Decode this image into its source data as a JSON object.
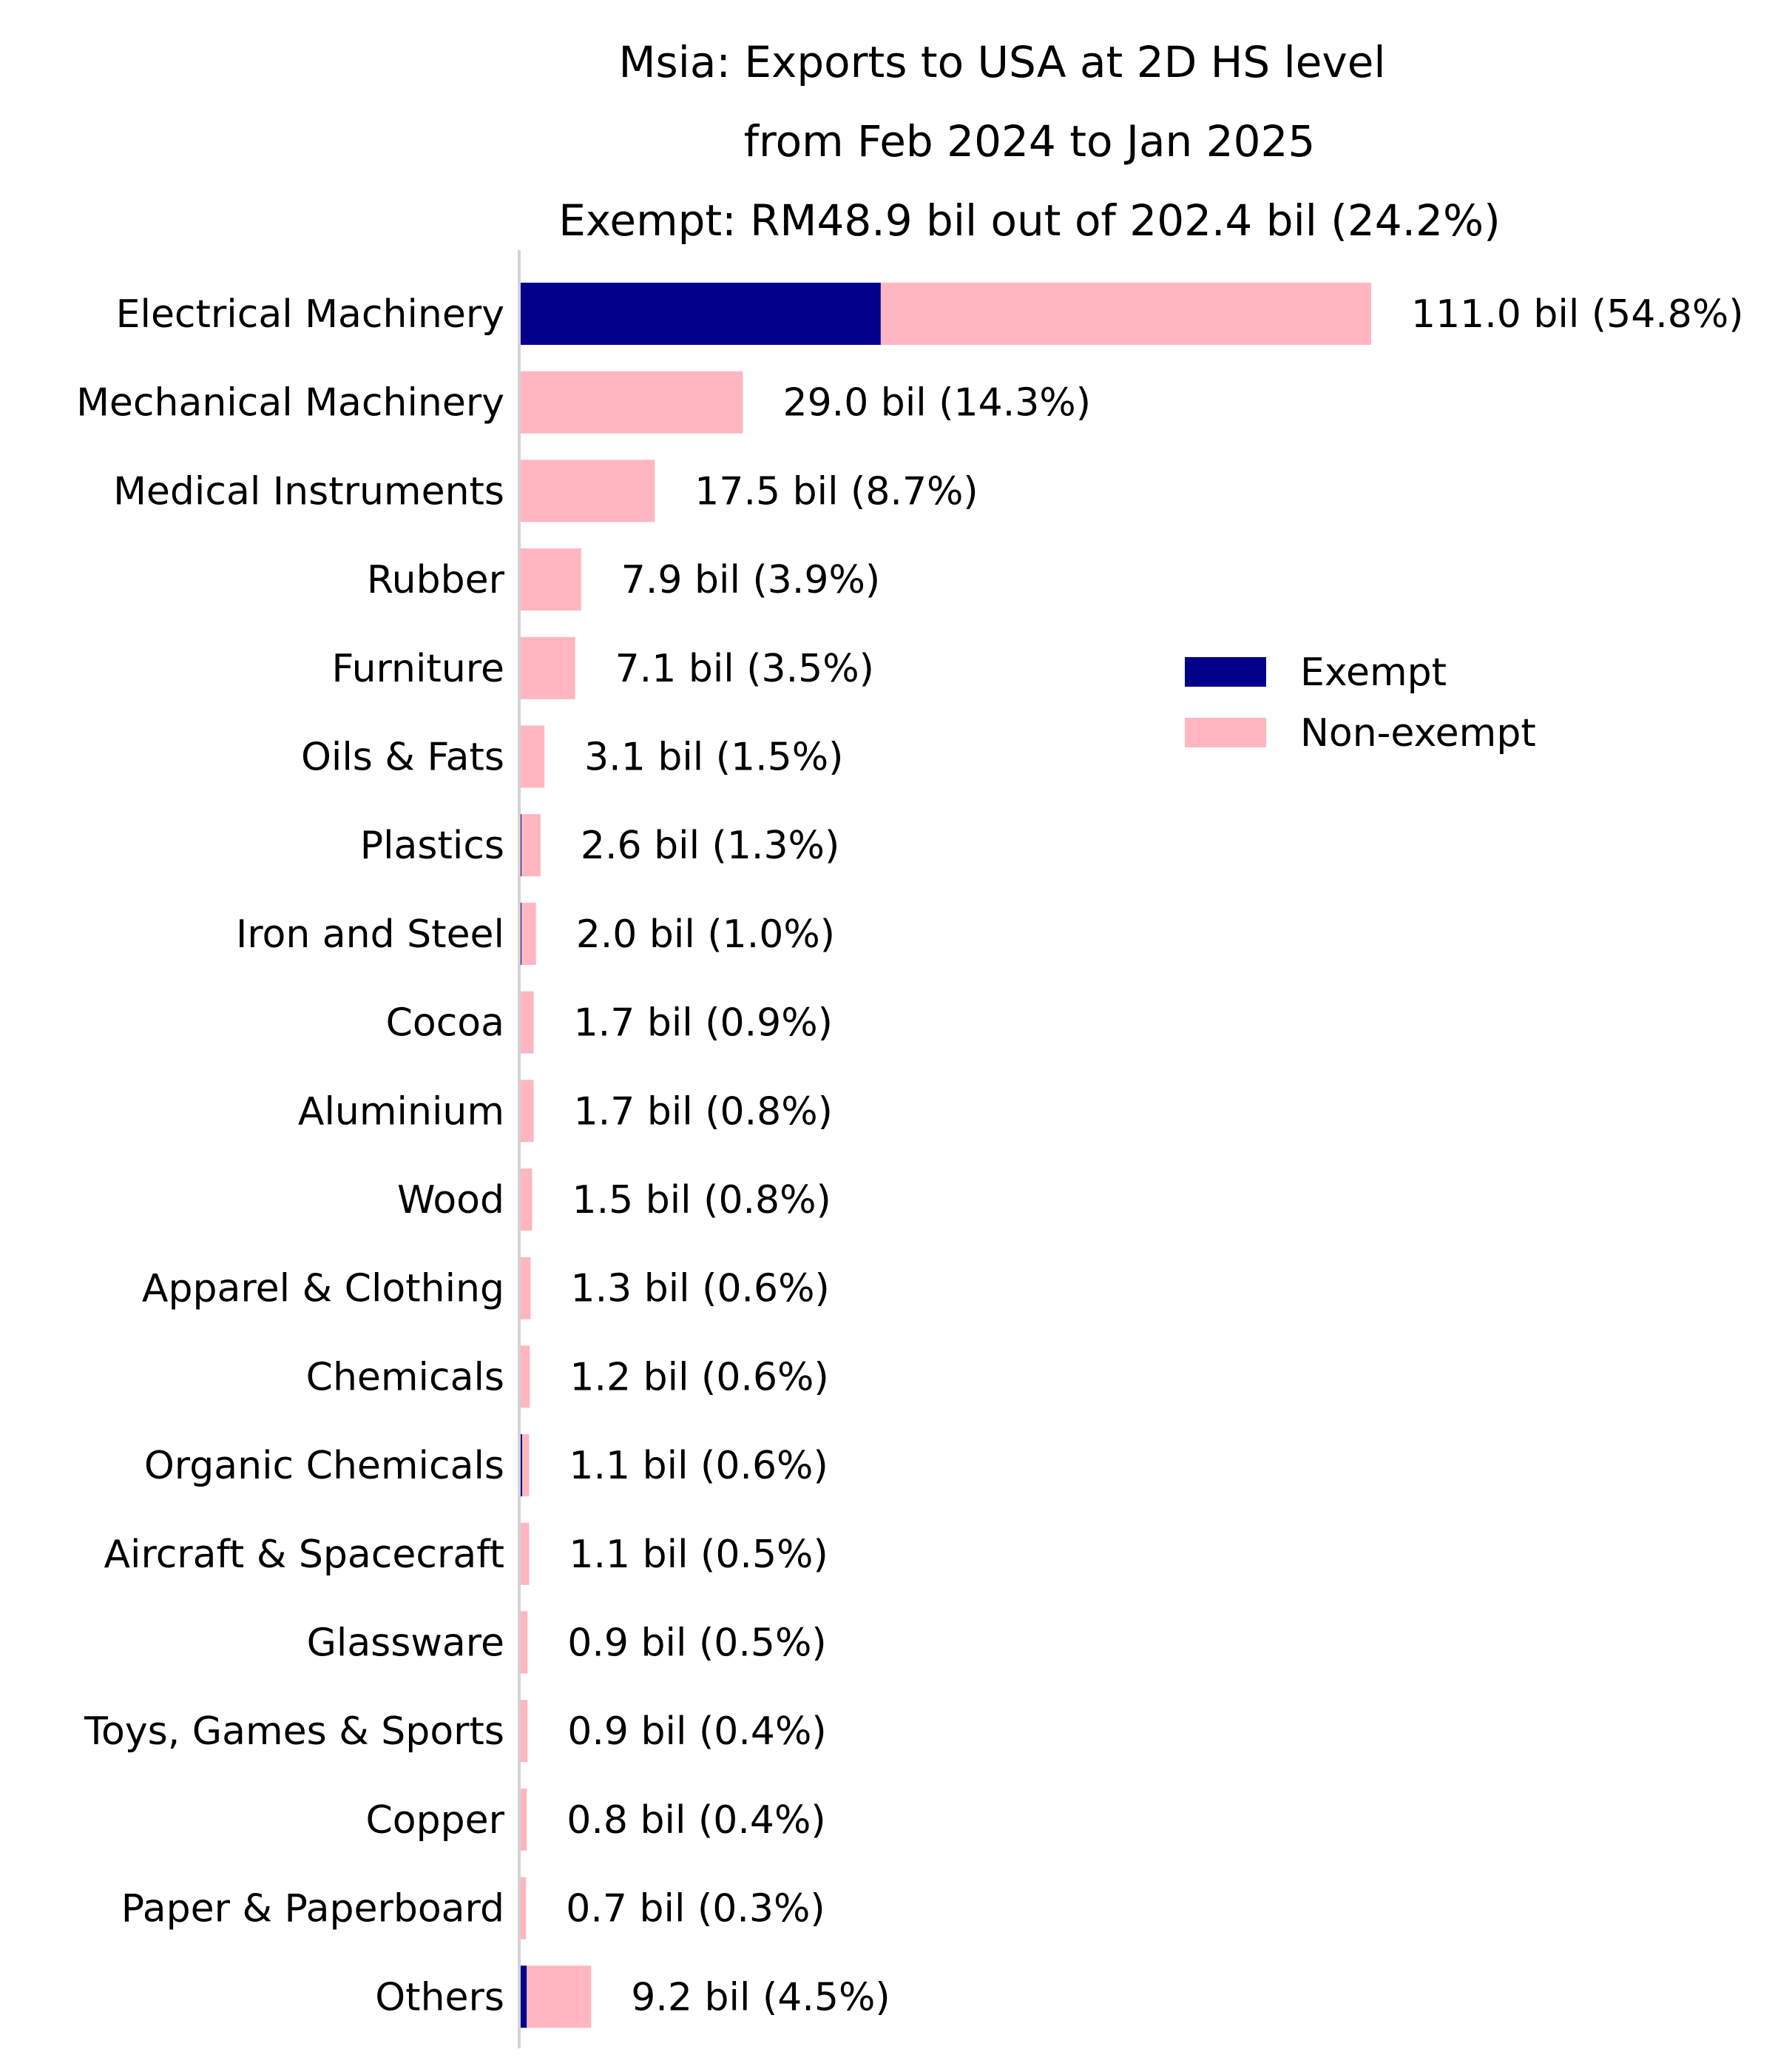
{
  "chart_data": {
    "type": "bar",
    "orientation": "horizontal",
    "stacked": true,
    "title_lines": [
      "Msia: Exports to USA at 2D HS level",
      "from Feb 2024 to Jan 2025",
      "Exempt: RM48.9 bil out of 202.4 bil (24.2%)"
    ],
    "xlabel": "",
    "ylabel": "",
    "xlim": [
      0,
      111
    ],
    "grid": false,
    "legend_position": "right",
    "categories": [
      "Electrical Machinery",
      "Mechanical Machinery",
      "Medical Instruments",
      "Rubber",
      "Furniture",
      "Oils & Fats",
      "Plastics",
      "Iron and Steel",
      "Cocoa",
      "Aluminium",
      "Wood",
      "Apparel & Clothing",
      "Chemicals",
      "Organic Chemicals",
      "Aircraft & Spacecraft",
      "Glassware",
      "Toys, Games & Sports",
      "Copper",
      "Paper & Paperboard",
      "Others"
    ],
    "series": [
      {
        "name": "Exempt",
        "color": "#00008b",
        "values": [
          47.0,
          0,
          0,
          0,
          0,
          0,
          0.1,
          0.1,
          0,
          0,
          0,
          0,
          0,
          0.2,
          0,
          0,
          0,
          0,
          0,
          0.8
        ]
      },
      {
        "name": "Non-exempt",
        "color": "#ffb6c1",
        "values": [
          64.0,
          29.0,
          17.5,
          7.9,
          7.1,
          3.1,
          2.5,
          1.9,
          1.7,
          1.7,
          1.5,
          1.3,
          1.2,
          0.9,
          1.1,
          0.9,
          0.9,
          0.8,
          0.7,
          8.4
        ]
      }
    ],
    "data_labels": [
      "111.0 bil (54.8%)",
      "29.0 bil (14.3%)",
      "17.5 bil (8.7%)",
      "7.9 bil (3.9%)",
      "7.1 bil (3.5%)",
      "3.1 bil (1.5%)",
      "2.6 bil (1.3%)",
      "2.0 bil (1.0%)",
      "1.7 bil (0.9%)",
      "1.7 bil (0.8%)",
      "1.5 bil (0.8%)",
      "1.3 bil (0.6%)",
      "1.2 bil (0.6%)",
      "1.1 bil (0.6%)",
      "1.1 bil (0.5%)",
      "0.9 bil (0.5%)",
      "0.9 bil (0.4%)",
      "0.8 bil (0.4%)",
      "0.7 bil (0.3%)",
      "9.2 bil (4.5%)"
    ]
  }
}
